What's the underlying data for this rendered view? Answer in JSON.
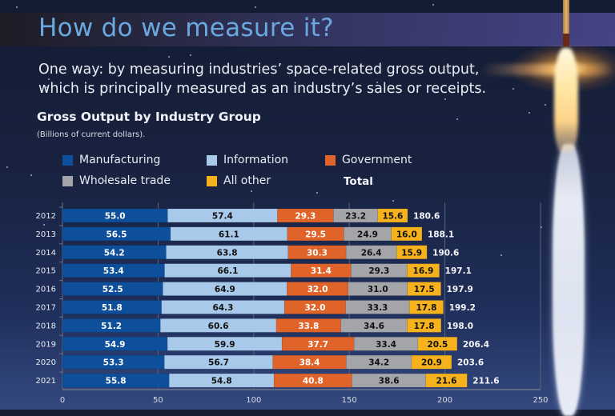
{
  "header": {
    "title": "How do we measure it?",
    "subtitle": "One way: by measuring industries’ space-related gross output, which is principally measured as an industry’s sales or receipts."
  },
  "chart_data": {
    "type": "bar",
    "orientation": "horizontal",
    "stacked": true,
    "title": "Gross Output by Industry Group",
    "subtitle": "(Billions of current dollars).",
    "xlabel": "",
    "ylabel": "",
    "xlim": [
      0,
      250
    ],
    "xticks": [
      0,
      50,
      100,
      150,
      200,
      250
    ],
    "grid": true,
    "legend_position": "top",
    "categories": [
      "2012",
      "2013",
      "2014",
      "2015",
      "2016",
      "2017",
      "2018",
      "2019",
      "2020",
      "2021"
    ],
    "series": [
      {
        "name": "Manufacturing",
        "color": "#0d4f9a",
        "label_color": "#ffffff",
        "values": [
          55.0,
          56.5,
          54.2,
          53.4,
          52.5,
          51.8,
          51.2,
          54.9,
          53.3,
          55.8
        ]
      },
      {
        "name": "Information",
        "color": "#a9c9ea",
        "label_color": "#111111",
        "values": [
          57.4,
          61.1,
          63.8,
          66.1,
          64.9,
          64.3,
          60.6,
          59.9,
          56.7,
          54.8
        ]
      },
      {
        "name": "Government",
        "color": "#e0642a",
        "label_color": "#ffffff",
        "values": [
          29.3,
          29.5,
          30.3,
          31.4,
          32.0,
          32.0,
          33.8,
          37.7,
          38.4,
          40.8
        ]
      },
      {
        "name": "Wholesale trade",
        "color": "#a3a5a8",
        "label_color": "#111111",
        "values": [
          23.2,
          24.9,
          26.4,
          29.3,
          31.0,
          33.3,
          34.6,
          33.4,
          34.2,
          38.6
        ]
      },
      {
        "name": "All other",
        "color": "#f5b21c",
        "label_color": "#111111",
        "values": [
          15.6,
          16.0,
          15.9,
          16.9,
          17.5,
          17.8,
          17.8,
          20.5,
          20.9,
          21.6
        ]
      }
    ],
    "totals_label": "Total",
    "totals": [
      180.6,
      188.1,
      190.6,
      197.1,
      197.9,
      199.2,
      198.0,
      206.4,
      203.6,
      211.6
    ]
  }
}
